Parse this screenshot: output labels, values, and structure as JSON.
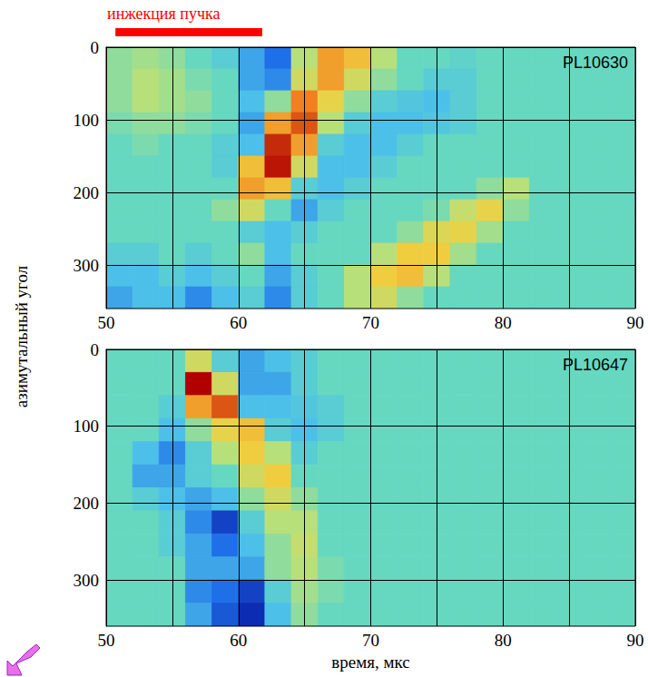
{
  "chart_data": {
    "type": "heatmap",
    "xlabel": "время, мкс",
    "ylabel": "азимутальный угол",
    "xlim": [
      50,
      90
    ],
    "xticks": [
      50,
      60,
      70,
      80,
      90
    ],
    "ylim": [
      0,
      360
    ],
    "yticks": [
      0,
      100,
      200,
      300
    ],
    "grid": true,
    "z_range": [
      -1,
      1
    ],
    "injection": {
      "label": "инжекция пучка",
      "x_range": [
        50.7,
        61.8
      ],
      "color": "#ff0000"
    },
    "x": [
      51,
      53,
      55,
      57,
      59,
      61,
      63,
      65,
      67,
      69,
      71,
      73,
      75,
      77,
      79,
      81,
      83,
      85,
      87,
      89
    ],
    "y": [
      15,
      45,
      75,
      105,
      135,
      165,
      195,
      225,
      255,
      285,
      315,
      345
    ],
    "panels": [
      {
        "title": "PL10630",
        "z": [
          [
            0.1,
            0.15,
            0.1,
            0.0,
            -0.1,
            -0.3,
            -0.5,
            0.2,
            0.6,
            0.5,
            0.2,
            0,
            0,
            -0.05,
            0,
            0,
            0,
            0,
            0,
            0
          ],
          [
            0.1,
            0.2,
            0.15,
            0.05,
            0.0,
            -0.3,
            -0.4,
            0.3,
            0.6,
            0.3,
            0.1,
            0,
            -0.1,
            -0.1,
            0,
            0,
            0,
            0,
            0,
            0
          ],
          [
            0.1,
            0.2,
            0.15,
            0.1,
            0.0,
            -0.2,
            0.1,
            0.7,
            0.4,
            0.1,
            -0.1,
            -0.15,
            -0.2,
            -0.1,
            0,
            0,
            0,
            0,
            0,
            0
          ],
          [
            0.05,
            0.1,
            0.1,
            0.05,
            0.0,
            -0.3,
            0.6,
            0.8,
            0.2,
            -0.1,
            -0.2,
            -0.2,
            -0.15,
            -0.1,
            0,
            0,
            0,
            0,
            0,
            0
          ],
          [
            0.0,
            0.05,
            0.0,
            0.0,
            -0.1,
            -0.2,
            0.9,
            0.6,
            -0.1,
            -0.2,
            -0.2,
            -0.1,
            0,
            0,
            0,
            0,
            0,
            0,
            0,
            0
          ],
          [
            0.0,
            0.0,
            0.0,
            0.0,
            -0.1,
            0.5,
            0.95,
            0.3,
            -0.2,
            -0.2,
            -0.1,
            0,
            0,
            0,
            0,
            0,
            0,
            0,
            0,
            0
          ],
          [
            0,
            0,
            0,
            0,
            0,
            0.6,
            0.5,
            -0.1,
            -0.2,
            -0.1,
            0,
            0,
            0,
            0,
            0.1,
            0.2,
            0,
            0,
            0,
            0
          ],
          [
            0,
            0,
            0,
            0,
            0.1,
            0.3,
            0.0,
            -0.3,
            -0.1,
            0,
            0,
            0,
            0.05,
            0.25,
            0.4,
            0.1,
            0,
            0,
            0,
            0
          ],
          [
            0,
            0,
            0,
            0,
            0,
            -0.1,
            -0.2,
            -0.1,
            0,
            0,
            0,
            0.1,
            0.35,
            0.4,
            0.15,
            0,
            0,
            0,
            0,
            0
          ],
          [
            -0.1,
            -0.1,
            0,
            -0.1,
            0,
            0.1,
            -0.2,
            0,
            0,
            0,
            0.2,
            0.45,
            0.45,
            0.15,
            0,
            0,
            0,
            0,
            0,
            0
          ],
          [
            -0.2,
            -0.2,
            -0.1,
            -0.2,
            -0.1,
            0,
            -0.3,
            -0.1,
            0,
            0.2,
            0.45,
            0.5,
            0.2,
            0,
            0,
            0,
            0,
            0,
            0,
            0
          ],
          [
            -0.3,
            -0.2,
            -0.2,
            -0.4,
            -0.2,
            -0.1,
            -0.4,
            -0.1,
            0,
            0.2,
            0.3,
            0.1,
            0,
            0,
            0,
            0,
            0,
            0,
            0,
            0
          ]
        ]
      },
      {
        "title": "PL10647",
        "z": [
          [
            0,
            0,
            0,
            0.3,
            -0.1,
            -0.3,
            -0.2,
            -0.1,
            0,
            0,
            0,
            0,
            0,
            0,
            0,
            0,
            0,
            0,
            0,
            0
          ],
          [
            0,
            0,
            0,
            1.0,
            0.3,
            -0.3,
            -0.3,
            -0.1,
            0,
            0,
            0,
            0,
            0,
            0,
            0,
            0,
            0,
            0,
            0,
            0
          ],
          [
            0,
            0,
            -0.1,
            0.6,
            0.8,
            -0.2,
            -0.2,
            -0.15,
            -0.1,
            0,
            0,
            0,
            0,
            0,
            0,
            0,
            0,
            0,
            0,
            0
          ],
          [
            0,
            0,
            -0.2,
            0.1,
            0.4,
            0.5,
            -0.1,
            -0.2,
            -0.1,
            0,
            0,
            0,
            0,
            0,
            0,
            0,
            0,
            0,
            0,
            0
          ],
          [
            0,
            -0.2,
            -0.4,
            -0.1,
            0.2,
            0.45,
            0.2,
            -0.1,
            0,
            0,
            0,
            0,
            0,
            0,
            0,
            0,
            0,
            0,
            0,
            0
          ],
          [
            0,
            -0.3,
            -0.3,
            -0.1,
            0,
            0.3,
            0.45,
            0,
            0,
            0,
            0,
            0,
            0,
            0,
            0,
            0,
            0,
            0,
            0,
            0
          ],
          [
            0,
            -0.1,
            -0.2,
            -0.3,
            -0.2,
            0.1,
            0.3,
            0.1,
            0,
            0,
            0,
            0,
            0,
            0,
            0,
            0,
            0,
            0,
            0,
            0
          ],
          [
            0,
            0,
            -0.1,
            -0.4,
            -0.7,
            -0.1,
            0.2,
            0.2,
            0,
            0,
            0,
            0,
            0,
            0,
            0,
            0,
            0,
            0,
            0,
            0
          ],
          [
            0,
            0,
            -0.1,
            -0.3,
            -0.5,
            -0.2,
            0.1,
            0.25,
            0,
            0,
            0,
            0,
            0,
            0,
            0,
            0,
            0,
            0,
            0,
            0
          ],
          [
            0,
            0,
            0,
            -0.3,
            -0.3,
            -0.3,
            0.1,
            0.2,
            0.05,
            0,
            0,
            0,
            0,
            0,
            0,
            0,
            0,
            0,
            0,
            0
          ],
          [
            0,
            0,
            0,
            -0.4,
            -0.5,
            -0.7,
            -0.1,
            0.15,
            0.05,
            0,
            0,
            0,
            0,
            0,
            0,
            0,
            0,
            0,
            0,
            0
          ],
          [
            0,
            0,
            0,
            -0.3,
            -0.6,
            -0.8,
            -0.2,
            0.1,
            0,
            0,
            0,
            0,
            0,
            0,
            0,
            0,
            0,
            0,
            0,
            0
          ]
        ]
      }
    ]
  }
}
